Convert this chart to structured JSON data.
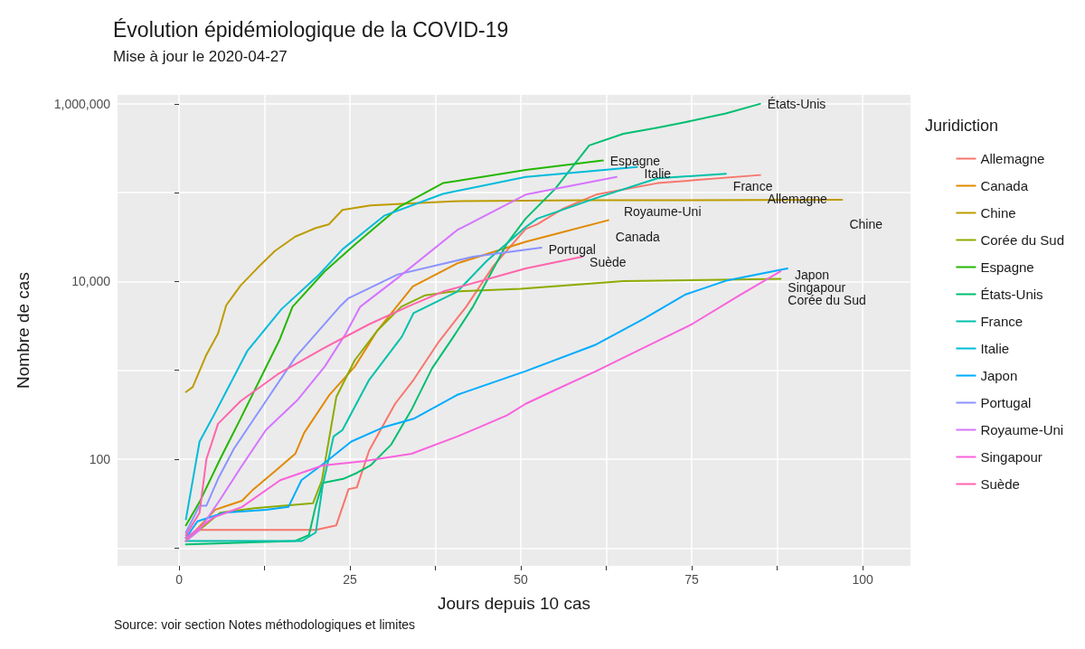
{
  "chart_data": {
    "type": "line",
    "title": "Évolution épidémiologique de la COVID-19",
    "subtitle": "Mise à jour le 2020-04-27",
    "xlabel": "Jours depuis 10 cas",
    "ylabel": "Nombre de cas",
    "legend_title": "Juridiction",
    "legend": "right",
    "grid": true,
    "log": "y",
    "line_style": "solid",
    "marker": "none",
    "xlim": [
      -9,
      107
    ],
    "xticks": [
      0,
      {
        "value": 12.5,
        "label": null
      },
      25,
      {
        "value": 37.5,
        "label": null
      },
      50,
      {
        "value": 62.5,
        "label": null
      },
      75,
      {
        "value": 87.5,
        "label": null
      },
      100
    ],
    "ylim": [
      6.3,
      1260000
    ],
    "yticks": [
      {
        "value": 10,
        "label": null
      },
      100,
      {
        "value": 1000,
        "label": null
      },
      {
        "value": 10000,
        "label": "10,000"
      },
      {
        "value": 100000,
        "label": null
      },
      {
        "value": 1000000,
        "label": "1,000,000"
      }
    ],
    "annotations": [
      "Source: voir section Notes méthodologiques et limites"
    ],
    "series": [
      {
        "name": "Allemagne",
        "color": "#f8766d",
        "x": [
          1,
          3,
          20,
          23,
          24.8,
          26,
          27.8,
          31.6,
          34.3,
          38,
          42,
          46,
          50.7,
          52.4,
          56,
          61,
          70,
          85
        ],
        "values": [
          12,
          16,
          16,
          18,
          46,
          48,
          125,
          420,
          780,
          2100,
          5200,
          15000,
          39000,
          44000,
          65000,
          95000,
          128000,
          158000
        ]
      },
      {
        "name": "Canada",
        "color": "#e18a00",
        "x": [
          1,
          5.3,
          9.2,
          10.9,
          14,
          17,
          18.3,
          22,
          25.7,
          29,
          34.2,
          40.7,
          50.7,
          62.8
        ],
        "values": [
          12,
          27,
          34,
          46,
          73,
          115,
          198,
          530,
          1100,
          2800,
          8800,
          16000,
          28000,
          49000
        ]
      },
      {
        "name": "Chine",
        "color": "#be9c00",
        "x": [
          1,
          2,
          4,
          5.7,
          6.9,
          9,
          11.4,
          14,
          17,
          20,
          21.9,
          23.9,
          28,
          40,
          60,
          97
        ],
        "values": [
          570,
          650,
          1500,
          2600,
          5400,
          9000,
          14000,
          22000,
          32000,
          40000,
          44000,
          64000,
          72000,
          80000,
          82000,
          83000
        ]
      },
      {
        "name": "Corée du Sud",
        "color": "#8cab00",
        "x": [
          1,
          3,
          6,
          11,
          19.6,
          20.9,
          23,
          25.7,
          29,
          32.5,
          36,
          40,
          50,
          65,
          88
        ],
        "values": [
          13,
          16,
          25,
          28,
          32,
          58,
          500,
          1300,
          2800,
          5200,
          7000,
          7700,
          8300,
          10100,
          10700
        ]
      },
      {
        "name": "Espagne",
        "color": "#24b700",
        "x": [
          1,
          3,
          6,
          8.8,
          14.7,
          16.6,
          17,
          21.3,
          25.7,
          32.2,
          38.6,
          50.7,
          62
        ],
        "values": [
          18,
          33,
          100,
          267,
          2200,
          5200,
          5600,
          13000,
          26000,
          69000,
          128000,
          180000,
          230000
        ]
      },
      {
        "name": "États-Unis",
        "color": "#00be70",
        "x": [
          1,
          17,
          19,
          20,
          21,
          24,
          26,
          28,
          31,
          34,
          37,
          40,
          43,
          46,
          48,
          50.7,
          55,
          60,
          65,
          70,
          74,
          80,
          85
        ],
        "values": [
          11,
          12,
          14,
          30,
          54,
          60,
          70,
          85,
          145,
          360,
          1050,
          2300,
          5200,
          14000,
          27000,
          51000,
          110000,
          340000,
          460000,
          540000,
          620000,
          780000,
          1000000
        ]
      },
      {
        "name": "France",
        "color": "#00c1ab",
        "x": [
          1,
          18,
          20,
          21,
          22.6,
          23.9,
          27.8,
          32.6,
          34.3,
          40.7,
          45,
          50.7,
          52.4,
          61,
          70,
          80
        ],
        "values": [
          12,
          12,
          15,
          50,
          180,
          213,
          780,
          2400,
          4400,
          7700,
          17000,
          41000,
          51000,
          87000,
          145000,
          163000
        ]
      },
      {
        "name": "Italie",
        "color": "#00bbda",
        "x": [
          1,
          3,
          5.3,
          10,
          15,
          20.5,
          23.9,
          30,
          38.6,
          50.7,
          67
        ],
        "values": [
          21,
          158,
          335,
          1660,
          4900,
          12000,
          23000,
          55000,
          97000,
          150000,
          195000
        ]
      },
      {
        "name": "Japon",
        "color": "#00acfc",
        "x": [
          1,
          2.7,
          6.6,
          12.7,
          16,
          17.9,
          21.3,
          25.2,
          30,
          34.3,
          40.7,
          50.7,
          61,
          68,
          74,
          80,
          89
        ],
        "values": [
          13,
          20,
          25,
          27,
          29,
          58,
          91,
          158,
          230,
          285,
          530,
          980,
          1950,
          3800,
          7100,
          10200,
          14000
        ]
      },
      {
        "name": "Portugal",
        "color": "#8b93ff",
        "x": [
          1,
          3,
          4,
          5.7,
          8,
          12.7,
          17,
          23.5,
          24.8,
          32,
          43,
          53
        ],
        "values": [
          15,
          30,
          30,
          60,
          130,
          450,
          1400,
          5200,
          6500,
          12000,
          19000,
          24000
        ]
      },
      {
        "name": "Royaume-Uni",
        "color": "#d575fe",
        "x": [
          1,
          3,
          6,
          9,
          12.7,
          17.4,
          21.3,
          24.4,
          26.5,
          32,
          40.7,
          50.7,
          64
        ],
        "values": [
          12,
          16,
          35,
          80,
          213,
          470,
          1100,
          2600,
          5200,
          11000,
          38000,
          95000,
          150000
        ]
      },
      {
        "name": "Singapour",
        "color": "#f962dd",
        "x": [
          1,
          5,
          9.2,
          14.8,
          21,
          27,
          34,
          40.7,
          44,
          48,
          50.7,
          55,
          61,
          68,
          75,
          82,
          88
        ],
        "values": [
          13,
          22,
          29,
          58,
          85,
          95,
          115,
          180,
          230,
          313,
          420,
          600,
          980,
          1800,
          3300,
          7000,
          13000
        ]
      },
      {
        "name": "Suède",
        "color": "#ff65ac",
        "x": [
          1,
          3,
          4,
          5.7,
          9,
          14.4,
          21.3,
          27.8,
          33.4,
          38.6,
          50.7,
          59
        ],
        "values": [
          14,
          25,
          100,
          250,
          450,
          900,
          1800,
          3300,
          5200,
          7700,
          14000,
          19000
        ]
      }
    ]
  }
}
